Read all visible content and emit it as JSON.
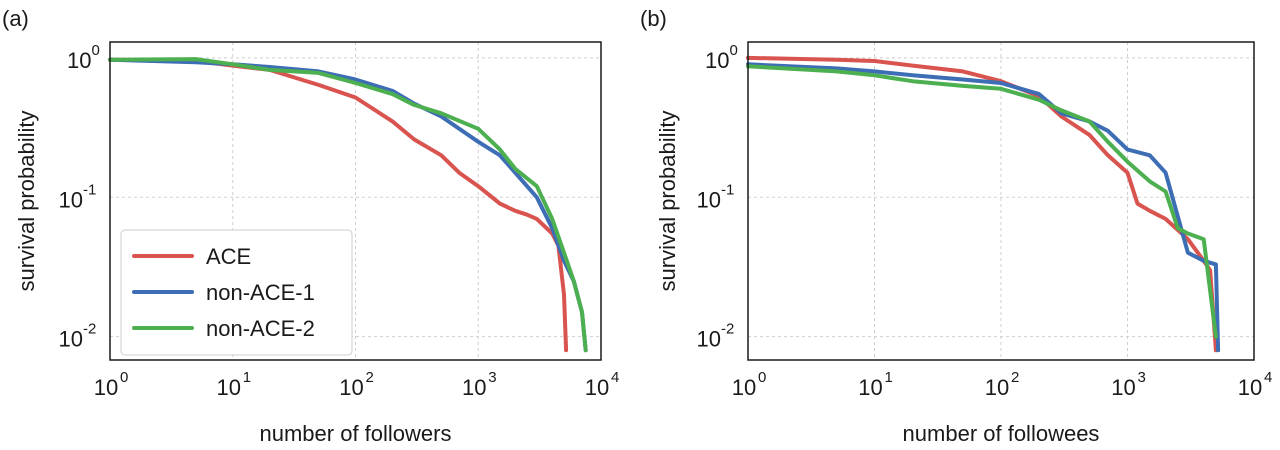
{
  "chart_data": [
    {
      "type": "line",
      "panel_label": "(a)",
      "xlabel": "number of followers",
      "ylabel": "survival probability",
      "x_scale": "log",
      "y_scale": "log",
      "xlim": [
        1,
        10000
      ],
      "ylim": [
        0.0068,
        1.3
      ],
      "x_ticks": [
        {
          "base": "10",
          "exp": "0",
          "value": 1
        },
        {
          "base": "10",
          "exp": "1",
          "value": 10
        },
        {
          "base": "10",
          "exp": "2",
          "value": 100
        },
        {
          "base": "10",
          "exp": "3",
          "value": 1000
        },
        {
          "base": "10",
          "exp": "4",
          "value": 10000
        }
      ],
      "y_ticks": [
        {
          "base": "10",
          "exp": "0",
          "value": 1
        },
        {
          "base": "10",
          "exp": "-1",
          "value": 0.1
        },
        {
          "base": "10",
          "exp": "-2",
          "value": 0.01
        }
      ],
      "grid": true,
      "legend_position": "lower-left",
      "series": [
        {
          "name": "ACE",
          "color": "#d9534f",
          "points": [
            [
              1,
              0.97
            ],
            [
              5,
              0.95
            ],
            [
              10,
              0.88
            ],
            [
              20,
              0.82
            ],
            [
              50,
              0.64
            ],
            [
              100,
              0.52
            ],
            [
              200,
              0.35
            ],
            [
              300,
              0.26
            ],
            [
              500,
              0.2
            ],
            [
              700,
              0.15
            ],
            [
              1000,
              0.12
            ],
            [
              1500,
              0.09
            ],
            [
              2000,
              0.08
            ],
            [
              2500,
              0.075
            ],
            [
              3000,
              0.07
            ],
            [
              4000,
              0.055
            ],
            [
              4500,
              0.045
            ],
            [
              5000,
              0.02
            ],
            [
              5200,
              0.008
            ]
          ]
        },
        {
          "name": "non-ACE-1",
          "color": "#3d6db5",
          "points": [
            [
              1,
              0.97
            ],
            [
              5,
              0.93
            ],
            [
              10,
              0.9
            ],
            [
              20,
              0.86
            ],
            [
              50,
              0.8
            ],
            [
              100,
              0.7
            ],
            [
              200,
              0.58
            ],
            [
              300,
              0.47
            ],
            [
              500,
              0.38
            ],
            [
              1000,
              0.25
            ],
            [
              1500,
              0.2
            ],
            [
              2000,
              0.15
            ],
            [
              3000,
              0.1
            ],
            [
              4000,
              0.06
            ],
            [
              5000,
              0.035
            ],
            [
              6000,
              0.025
            ],
            [
              7000,
              0.015
            ],
            [
              7500,
              0.008
            ]
          ]
        },
        {
          "name": "non-ACE-2",
          "color": "#4caf50",
          "points": [
            [
              1,
              0.97
            ],
            [
              5,
              0.98
            ],
            [
              10,
              0.9
            ],
            [
              20,
              0.82
            ],
            [
              50,
              0.78
            ],
            [
              100,
              0.66
            ],
            [
              200,
              0.55
            ],
            [
              300,
              0.46
            ],
            [
              500,
              0.4
            ],
            [
              1000,
              0.31
            ],
            [
              1500,
              0.22
            ],
            [
              2000,
              0.16
            ],
            [
              3000,
              0.12
            ],
            [
              4000,
              0.07
            ],
            [
              5000,
              0.04
            ],
            [
              6000,
              0.025
            ],
            [
              7000,
              0.015
            ],
            [
              7500,
              0.008
            ]
          ]
        }
      ]
    },
    {
      "type": "line",
      "panel_label": "(b)",
      "xlabel": "number of followees",
      "ylabel": "survival probability",
      "x_scale": "log",
      "y_scale": "log",
      "xlim": [
        1,
        10000
      ],
      "ylim": [
        0.0068,
        1.3
      ],
      "x_ticks": [
        {
          "base": "10",
          "exp": "0",
          "value": 1
        },
        {
          "base": "10",
          "exp": "1",
          "value": 10
        },
        {
          "base": "10",
          "exp": "2",
          "value": 100
        },
        {
          "base": "10",
          "exp": "3",
          "value": 1000
        },
        {
          "base": "10",
          "exp": "4",
          "value": 10000
        }
      ],
      "y_ticks": [
        {
          "base": "10",
          "exp": "0",
          "value": 1
        },
        {
          "base": "10",
          "exp": "-1",
          "value": 0.1
        },
        {
          "base": "10",
          "exp": "-2",
          "value": 0.01
        }
      ],
      "grid": true,
      "legend_position": "none",
      "series": [
        {
          "name": "ACE",
          "color": "#d9534f",
          "points": [
            [
              1,
              1.0
            ],
            [
              5,
              0.97
            ],
            [
              10,
              0.95
            ],
            [
              20,
              0.88
            ],
            [
              50,
              0.8
            ],
            [
              100,
              0.68
            ],
            [
              200,
              0.53
            ],
            [
              300,
              0.38
            ],
            [
              500,
              0.28
            ],
            [
              700,
              0.2
            ],
            [
              1000,
              0.15
            ],
            [
              1200,
              0.09
            ],
            [
              1500,
              0.08
            ],
            [
              2000,
              0.07
            ],
            [
              3000,
              0.05
            ],
            [
              4000,
              0.035
            ],
            [
              4500,
              0.03
            ],
            [
              5000,
              0.008
            ]
          ]
        },
        {
          "name": "non-ACE-1",
          "color": "#3d6db5",
          "points": [
            [
              1,
              0.9
            ],
            [
              5,
              0.84
            ],
            [
              10,
              0.8
            ],
            [
              20,
              0.75
            ],
            [
              50,
              0.7
            ],
            [
              100,
              0.66
            ],
            [
              200,
              0.55
            ],
            [
              300,
              0.4
            ],
            [
              500,
              0.35
            ],
            [
              700,
              0.3
            ],
            [
              1000,
              0.22
            ],
            [
              1500,
              0.2
            ],
            [
              2000,
              0.15
            ],
            [
              3000,
              0.04
            ],
            [
              4000,
              0.035
            ],
            [
              5000,
              0.033
            ],
            [
              5200,
              0.008
            ]
          ]
        },
        {
          "name": "non-ACE-2",
          "color": "#4caf50",
          "points": [
            [
              1,
              0.87
            ],
            [
              5,
              0.8
            ],
            [
              10,
              0.75
            ],
            [
              20,
              0.68
            ],
            [
              50,
              0.63
            ],
            [
              100,
              0.6
            ],
            [
              200,
              0.5
            ],
            [
              300,
              0.42
            ],
            [
              500,
              0.35
            ],
            [
              700,
              0.25
            ],
            [
              1000,
              0.18
            ],
            [
              1500,
              0.13
            ],
            [
              2000,
              0.11
            ],
            [
              2500,
              0.06
            ],
            [
              3000,
              0.055
            ],
            [
              4000,
              0.05
            ],
            [
              5000,
              0.01
            ]
          ]
        }
      ]
    }
  ]
}
